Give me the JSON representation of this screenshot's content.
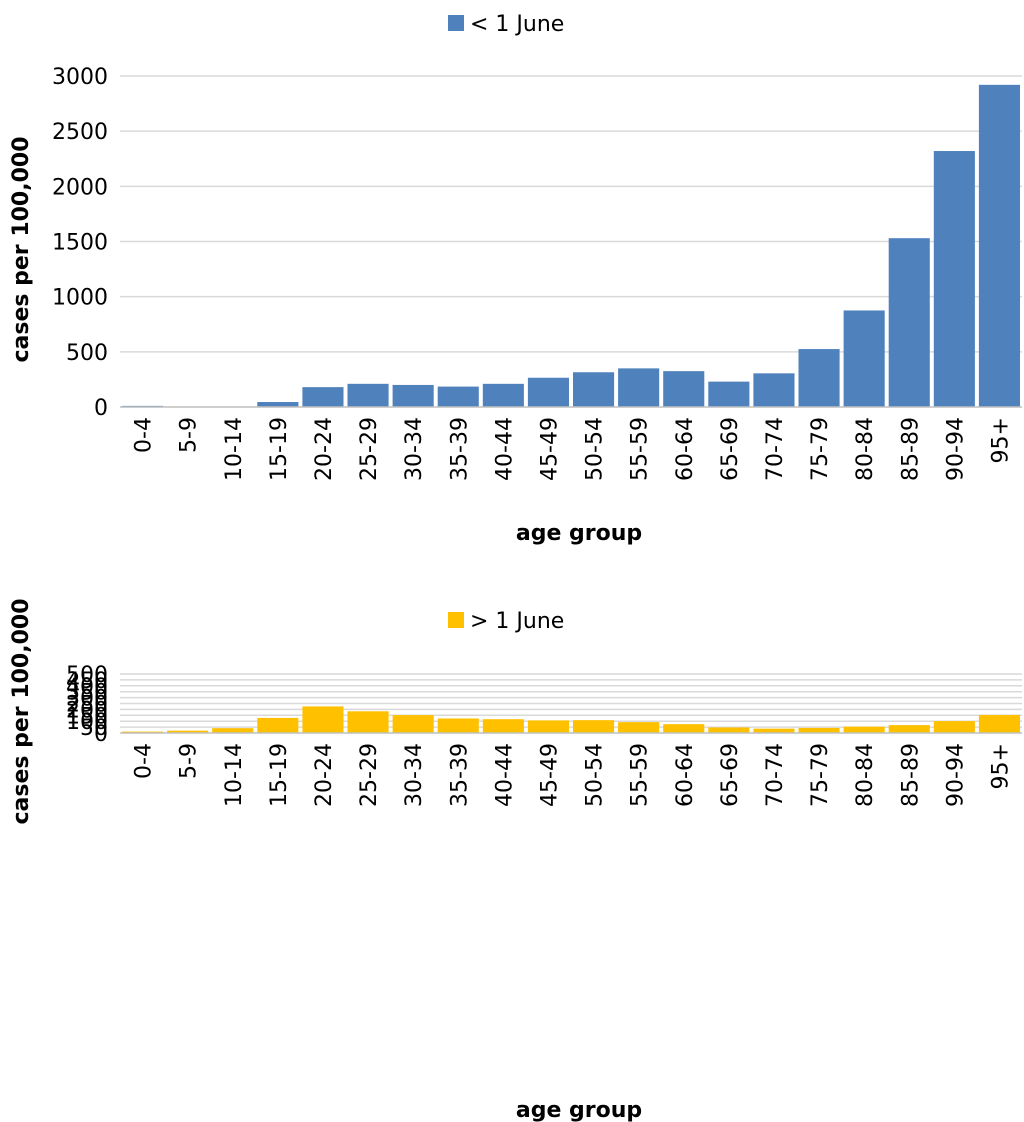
{
  "chart_data": [
    {
      "type": "bar",
      "title": "",
      "legend": {
        "position": "top-center",
        "entries": [
          "< 1 June"
        ]
      },
      "xlabel": "age group",
      "ylabel": "cases per 100,000",
      "ylim": [
        0,
        3000
      ],
      "yticks": [
        0,
        500,
        1000,
        1500,
        2000,
        2500,
        3000
      ],
      "grid": true,
      "categories": [
        "0-4",
        "5-9",
        "10-14",
        "15-19",
        "20-24",
        "25-29",
        "30-34",
        "35-39",
        "40-44",
        "45-49",
        "50-54",
        "55-59",
        "60-64",
        "65-69",
        "70-74",
        "75-79",
        "80-84",
        "85-89",
        "90-94",
        "95+"
      ],
      "series": [
        {
          "name": "< 1 June",
          "color": "#4f81bd",
          "values": [
            10,
            2,
            5,
            45,
            180,
            210,
            200,
            185,
            210,
            265,
            315,
            350,
            325,
            230,
            305,
            525,
            875,
            1530,
            2320,
            2920
          ]
        }
      ]
    },
    {
      "type": "bar",
      "title": "",
      "legend": {
        "position": "top-center",
        "entries": [
          "> 1 June"
        ]
      },
      "xlabel": "age group",
      "ylabel": "cases per 100,000",
      "ylim": [
        0,
        500
      ],
      "yticks": [
        0,
        50,
        100,
        150,
        200,
        250,
        300,
        350,
        400,
        450,
        500
      ],
      "grid": true,
      "categories": [
        "0-4",
        "5-9",
        "10-14",
        "15-19",
        "20-24",
        "25-29",
        "30-34",
        "35-39",
        "40-44",
        "45-49",
        "50-54",
        "55-59",
        "60-64",
        "65-69",
        "70-74",
        "75-79",
        "80-84",
        "85-89",
        "90-94",
        "95+"
      ],
      "series": [
        {
          "name": "> 1 June",
          "color": "#ffc000",
          "values": [
            12,
            20,
            41,
            128,
            225,
            184,
            152,
            123,
            117,
            107,
            109,
            92,
            75,
            47,
            37,
            43,
            54,
            67,
            101,
            153
          ]
        }
      ]
    }
  ]
}
